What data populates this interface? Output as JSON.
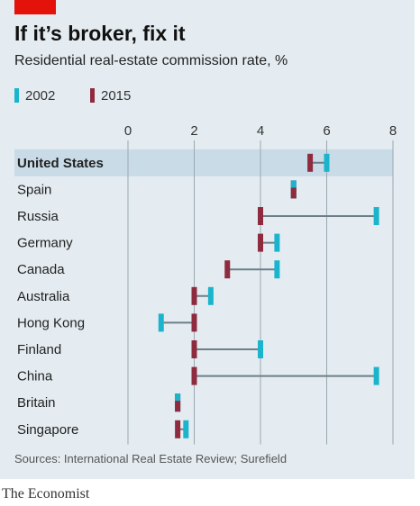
{
  "header": {
    "title": "If it’s broker, fix it",
    "subtitle": "Residential real-estate commission rate, %"
  },
  "legend": [
    {
      "label": "2002",
      "color": "#1ab5cc"
    },
    {
      "label": "2015",
      "color": "#8e2b3e"
    }
  ],
  "colors": {
    "tag": "#e3120b",
    "highlight_row": "#c9dbe6",
    "connector": "#6b7f8a",
    "grid": "#9aa7b0"
  },
  "chart_data": {
    "type": "dumbbell",
    "xlim": [
      0,
      8
    ],
    "x_ticks": [
      0,
      2,
      4,
      6,
      8
    ],
    "highlighted_category": "United States",
    "categories": [
      "United States",
      "Spain",
      "Russia",
      "Germany",
      "Canada",
      "Australia",
      "Hong Kong",
      "Finland",
      "China",
      "Britain",
      "Singapore"
    ],
    "series": [
      {
        "name": "2002",
        "values": [
          6.0,
          5.0,
          7.5,
          4.5,
          4.5,
          2.5,
          1.0,
          4.0,
          7.5,
          1.5,
          1.75
        ]
      },
      {
        "name": "2015",
        "values": [
          5.5,
          5.0,
          4.0,
          4.0,
          3.0,
          2.0,
          2.0,
          2.0,
          2.0,
          1.5,
          1.5
        ]
      }
    ]
  },
  "footer": {
    "source": "Sources: International Real Estate Review; Surefield",
    "brand": "The Economist"
  }
}
